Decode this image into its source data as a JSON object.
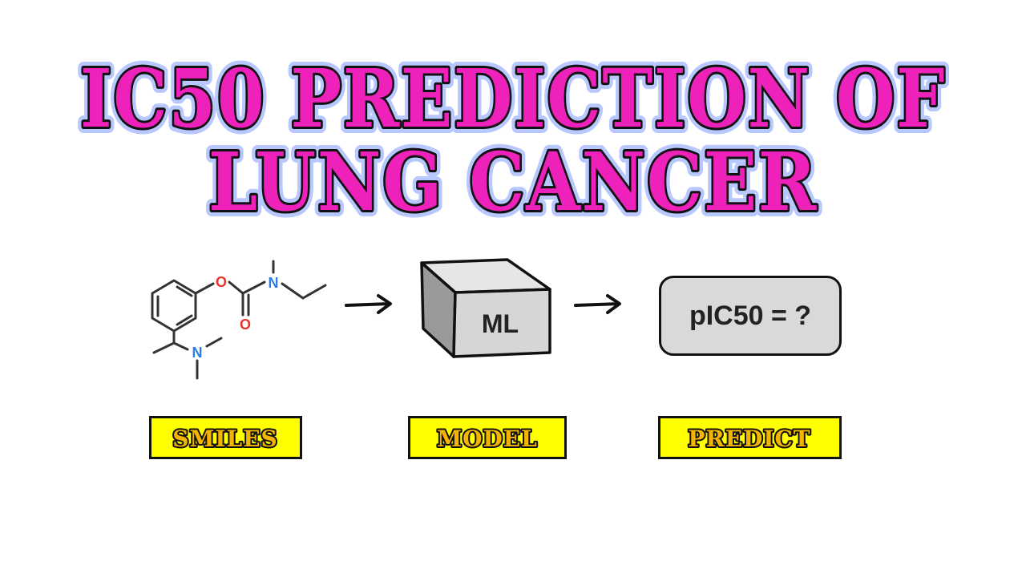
{
  "title": {
    "line1": "IC50 PREDICTION OF",
    "line2": "LUNG CANCER"
  },
  "pipeline": {
    "molecule": {
      "atoms": {
        "oxygen_ester": "O",
        "oxygen_carbonyl": "O",
        "nitrogen_carbamate": "N",
        "nitrogen_amine": "N"
      }
    },
    "model_box_text": "ML",
    "prediction_text": "pIC50 = ?",
    "labels": {
      "smiles": "SMILES",
      "model": "MODEL",
      "predict": "PREDICT"
    }
  },
  "colors": {
    "title_fill": "#ee22bb",
    "title_glow": "#b8c8ff",
    "label_fill": "#f5b400",
    "label_background": "#ffff00",
    "oxygen": "#e8322a",
    "nitrogen": "#2a7de8",
    "prediction_background": "#d9d9d9"
  }
}
